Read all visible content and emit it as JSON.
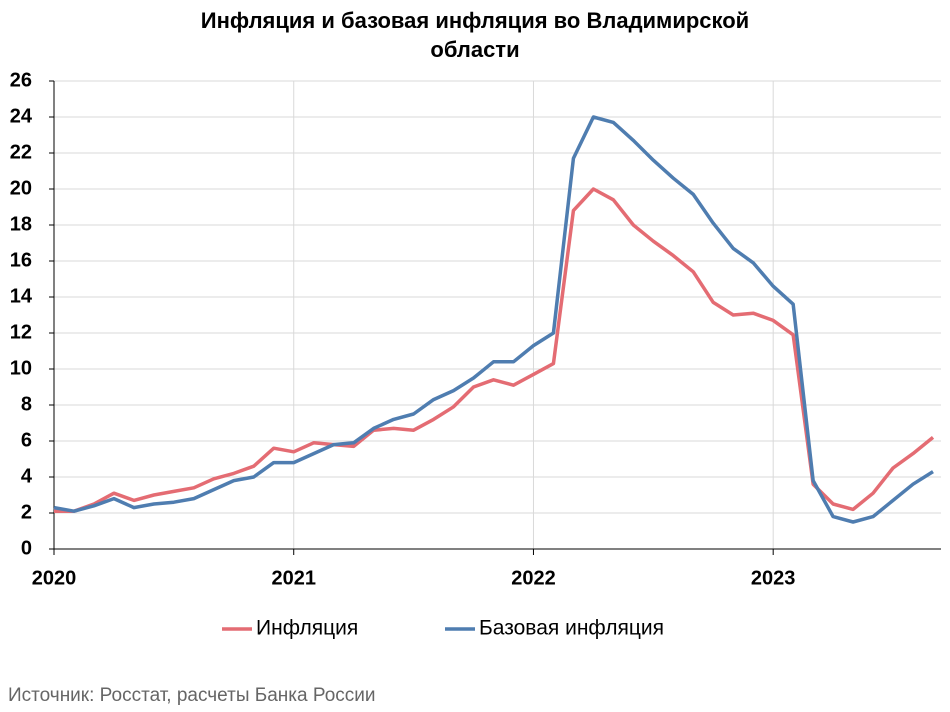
{
  "chart_data": {
    "type": "line",
    "title": "Инфляция и базовая инфляция во Владимирской области",
    "categories": [
      "2020",
      null,
      null,
      null,
      null,
      null,
      null,
      null,
      null,
      null,
      null,
      null,
      "2021",
      null,
      null,
      null,
      null,
      null,
      null,
      null,
      null,
      null,
      null,
      null,
      "2022",
      null,
      null,
      null,
      null,
      null,
      null,
      null,
      null,
      null,
      null,
      null,
      "2023",
      null,
      null,
      null,
      null,
      null,
      null,
      null,
      null
    ],
    "series": [
      {
        "name": "Инфляция",
        "color": "#e46c73",
        "values": [
          2.1,
          2.1,
          2.5,
          3.1,
          2.7,
          3.0,
          3.2,
          3.4,
          3.9,
          4.2,
          4.6,
          5.6,
          5.4,
          5.9,
          5.8,
          5.7,
          6.6,
          6.7,
          6.6,
          7.2,
          7.9,
          9.0,
          9.4,
          9.1,
          9.7,
          10.3,
          18.8,
          20.0,
          19.4,
          18.0,
          17.1,
          16.3,
          15.4,
          13.7,
          13.0,
          13.1,
          12.7,
          11.9,
          3.6,
          2.5,
          2.2,
          3.1,
          4.5,
          5.3,
          6.2
        ]
      },
      {
        "name": "Базовая инфляция",
        "color": "#4f7db0",
        "values": [
          2.3,
          2.1,
          2.4,
          2.8,
          2.3,
          2.5,
          2.6,
          2.8,
          3.3,
          3.8,
          4.0,
          4.8,
          4.8,
          5.3,
          5.8,
          5.9,
          6.7,
          7.2,
          7.5,
          8.3,
          8.8,
          9.5,
          10.4,
          10.4,
          11.3,
          12.0,
          21.7,
          24.0,
          23.7,
          22.7,
          21.6,
          20.6,
          19.7,
          18.1,
          16.7,
          15.9,
          14.6,
          13.6,
          3.8,
          1.8,
          1.5,
          1.8,
          2.7,
          3.6,
          4.3
        ]
      }
    ],
    "ylim": [
      0,
      26
    ],
    "yticks": [
      0,
      2,
      4,
      6,
      8,
      10,
      12,
      14,
      16,
      18,
      20,
      22,
      24,
      26
    ],
    "grid": true,
    "legend": "bottom"
  },
  "source": "Источник: Росстат, расчеты Банка России"
}
